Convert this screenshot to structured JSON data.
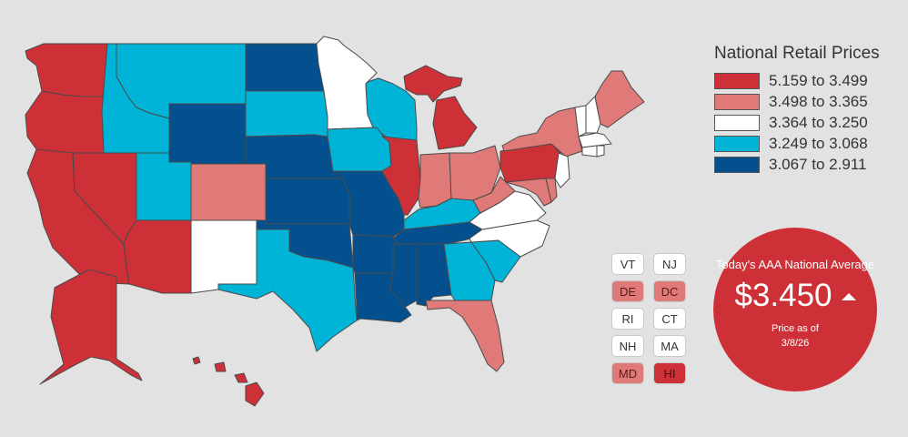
{
  "legend": {
    "title": "National Retail Prices",
    "ranges": [
      {
        "label": "5.159 to 3.499",
        "color": "#cd3137"
      },
      {
        "label": "3.498 to 3.365",
        "color": "#e07a78"
      },
      {
        "label": "3.364 to 3.250",
        "color": "#ffffff"
      },
      {
        "label": "3.249 to 3.068",
        "color": "#00b4d8"
      },
      {
        "label": "3.067 to 2.911",
        "color": "#04508f"
      }
    ]
  },
  "small_states": [
    {
      "abbr": "VT",
      "tier": 2
    },
    {
      "abbr": "NJ",
      "tier": 2
    },
    {
      "abbr": "DE",
      "tier": 1
    },
    {
      "abbr": "DC",
      "tier": 1
    },
    {
      "abbr": "RI",
      "tier": 2
    },
    {
      "abbr": "CT",
      "tier": 2
    },
    {
      "abbr": "NH",
      "tier": 2
    },
    {
      "abbr": "MA",
      "tier": 2
    },
    {
      "abbr": "MD",
      "tier": 1
    },
    {
      "abbr": "HI",
      "tier": 0
    }
  ],
  "states": {
    "WA": 0,
    "OR": 0,
    "CA": 0,
    "NV": 0,
    "AZ": 0,
    "AK": 0,
    "HI": 0,
    "IL": 0,
    "MI": 0,
    "PA": 0,
    "CO": 1,
    "IN": 1,
    "OH": 1,
    "WV": 1,
    "NY": 1,
    "ME": 1,
    "FL": 1,
    "MD": 1,
    "DE": 1,
    "DC": 1,
    "MN": 2,
    "NM": 2,
    "VA": 2,
    "NC": 2,
    "VT": 2,
    "NH": 2,
    "MA": 2,
    "RI": 2,
    "CT": 2,
    "NJ": 2,
    "ID": 3,
    "MT": 3,
    "UT": 3,
    "SD": 3,
    "IA": 3,
    "WI": 3,
    "TX": 3,
    "KY": 3,
    "GA": 3,
    "SC": 3,
    "WY": 4,
    "ND": 4,
    "NE": 4,
    "KS": 4,
    "OK": 4,
    "MO": 4,
    "AR": 4,
    "LA": 4,
    "MS": 4,
    "AL": 4,
    "TN": 4
  },
  "average": {
    "title": "Today's AAA National Average",
    "price": "$3.450",
    "trend": "up",
    "date_label": "Price as of",
    "date": "3/8/26"
  }
}
